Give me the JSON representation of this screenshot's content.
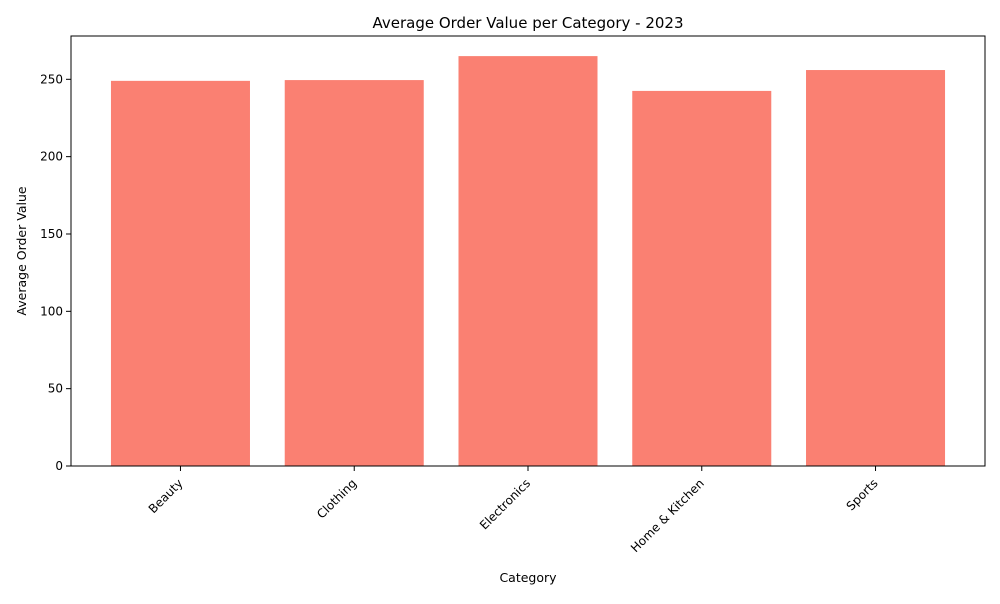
{
  "colors": {
    "bar": "#fa8072",
    "axis": "#000000",
    "background": "#ffffff"
  },
  "chart_data": {
    "type": "bar",
    "title": "Average Order Value per Category - 2023",
    "xlabel": "Category",
    "ylabel": "Average Order Value",
    "categories": [
      "Beauty",
      "Clothing",
      "Electronics",
      "Home & Kitchen",
      "Sports"
    ],
    "values": [
      249,
      249.5,
      265,
      242.5,
      256
    ],
    "ylim": [
      0,
      278
    ],
    "yticks": [
      0,
      50,
      100,
      150,
      200,
      250
    ],
    "x_tick_rotation_deg": 45,
    "grid": false,
    "legend": "none"
  }
}
